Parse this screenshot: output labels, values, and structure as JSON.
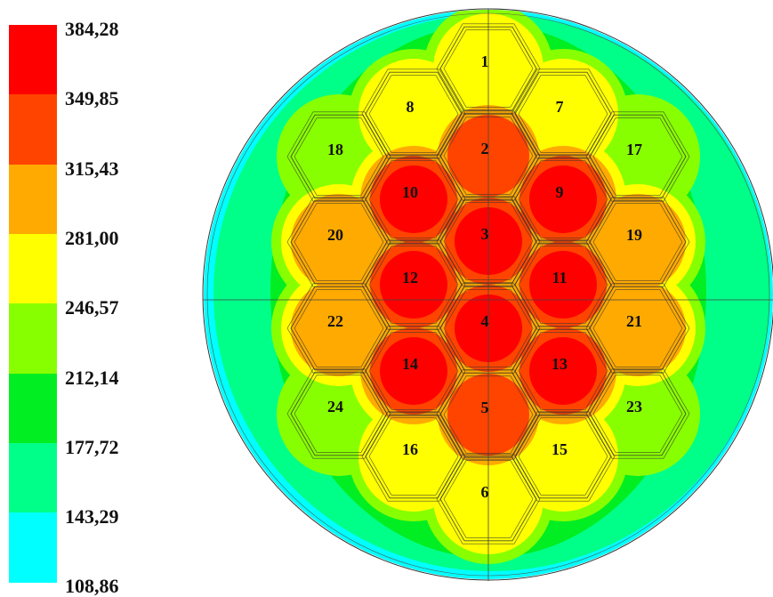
{
  "legend": {
    "levels": [
      {
        "label": "384,28",
        "color": "#ff0000"
      },
      {
        "label": "349,85",
        "color": "#ff4400"
      },
      {
        "label": "315,43",
        "color": "#ffaa00"
      },
      {
        "label": "281,00",
        "color": "#ffff00"
      },
      {
        "label": "246,57",
        "color": "#88ff00"
      },
      {
        "label": "212,14",
        "color": "#00ee22"
      },
      {
        "label": "177,72",
        "color": "#00ff88"
      },
      {
        "label": "143,29",
        "color": "#00ffff"
      },
      {
        "label": "108,86",
        "color": ""
      }
    ]
  },
  "assemblies": [
    {
      "id": "1",
      "temp_band": "281,00"
    },
    {
      "id": "2",
      "temp_band": "349,85"
    },
    {
      "id": "3",
      "temp_band": "384,28"
    },
    {
      "id": "4",
      "temp_band": "384,28"
    },
    {
      "id": "5",
      "temp_band": "349,85"
    },
    {
      "id": "6",
      "temp_band": "281,00"
    },
    {
      "id": "7",
      "temp_band": "281,00"
    },
    {
      "id": "8",
      "temp_band": "281,00"
    },
    {
      "id": "9",
      "temp_band": "384,28"
    },
    {
      "id": "10",
      "temp_band": "384,28"
    },
    {
      "id": "11",
      "temp_band": "384,28"
    },
    {
      "id": "12",
      "temp_band": "384,28"
    },
    {
      "id": "13",
      "temp_band": "384,28"
    },
    {
      "id": "14",
      "temp_band": "384,28"
    },
    {
      "id": "15",
      "temp_band": "281,00"
    },
    {
      "id": "16",
      "temp_band": "281,00"
    },
    {
      "id": "17",
      "temp_band": "246,57"
    },
    {
      "id": "18",
      "temp_band": "246,57"
    },
    {
      "id": "19",
      "temp_band": "315,43"
    },
    {
      "id": "20",
      "temp_band": "315,43"
    },
    {
      "id": "21",
      "temp_band": "315,43"
    },
    {
      "id": "22",
      "temp_band": "315,43"
    },
    {
      "id": "23",
      "temp_band": "246,57"
    },
    {
      "id": "24",
      "temp_band": "246,57"
    }
  ]
}
